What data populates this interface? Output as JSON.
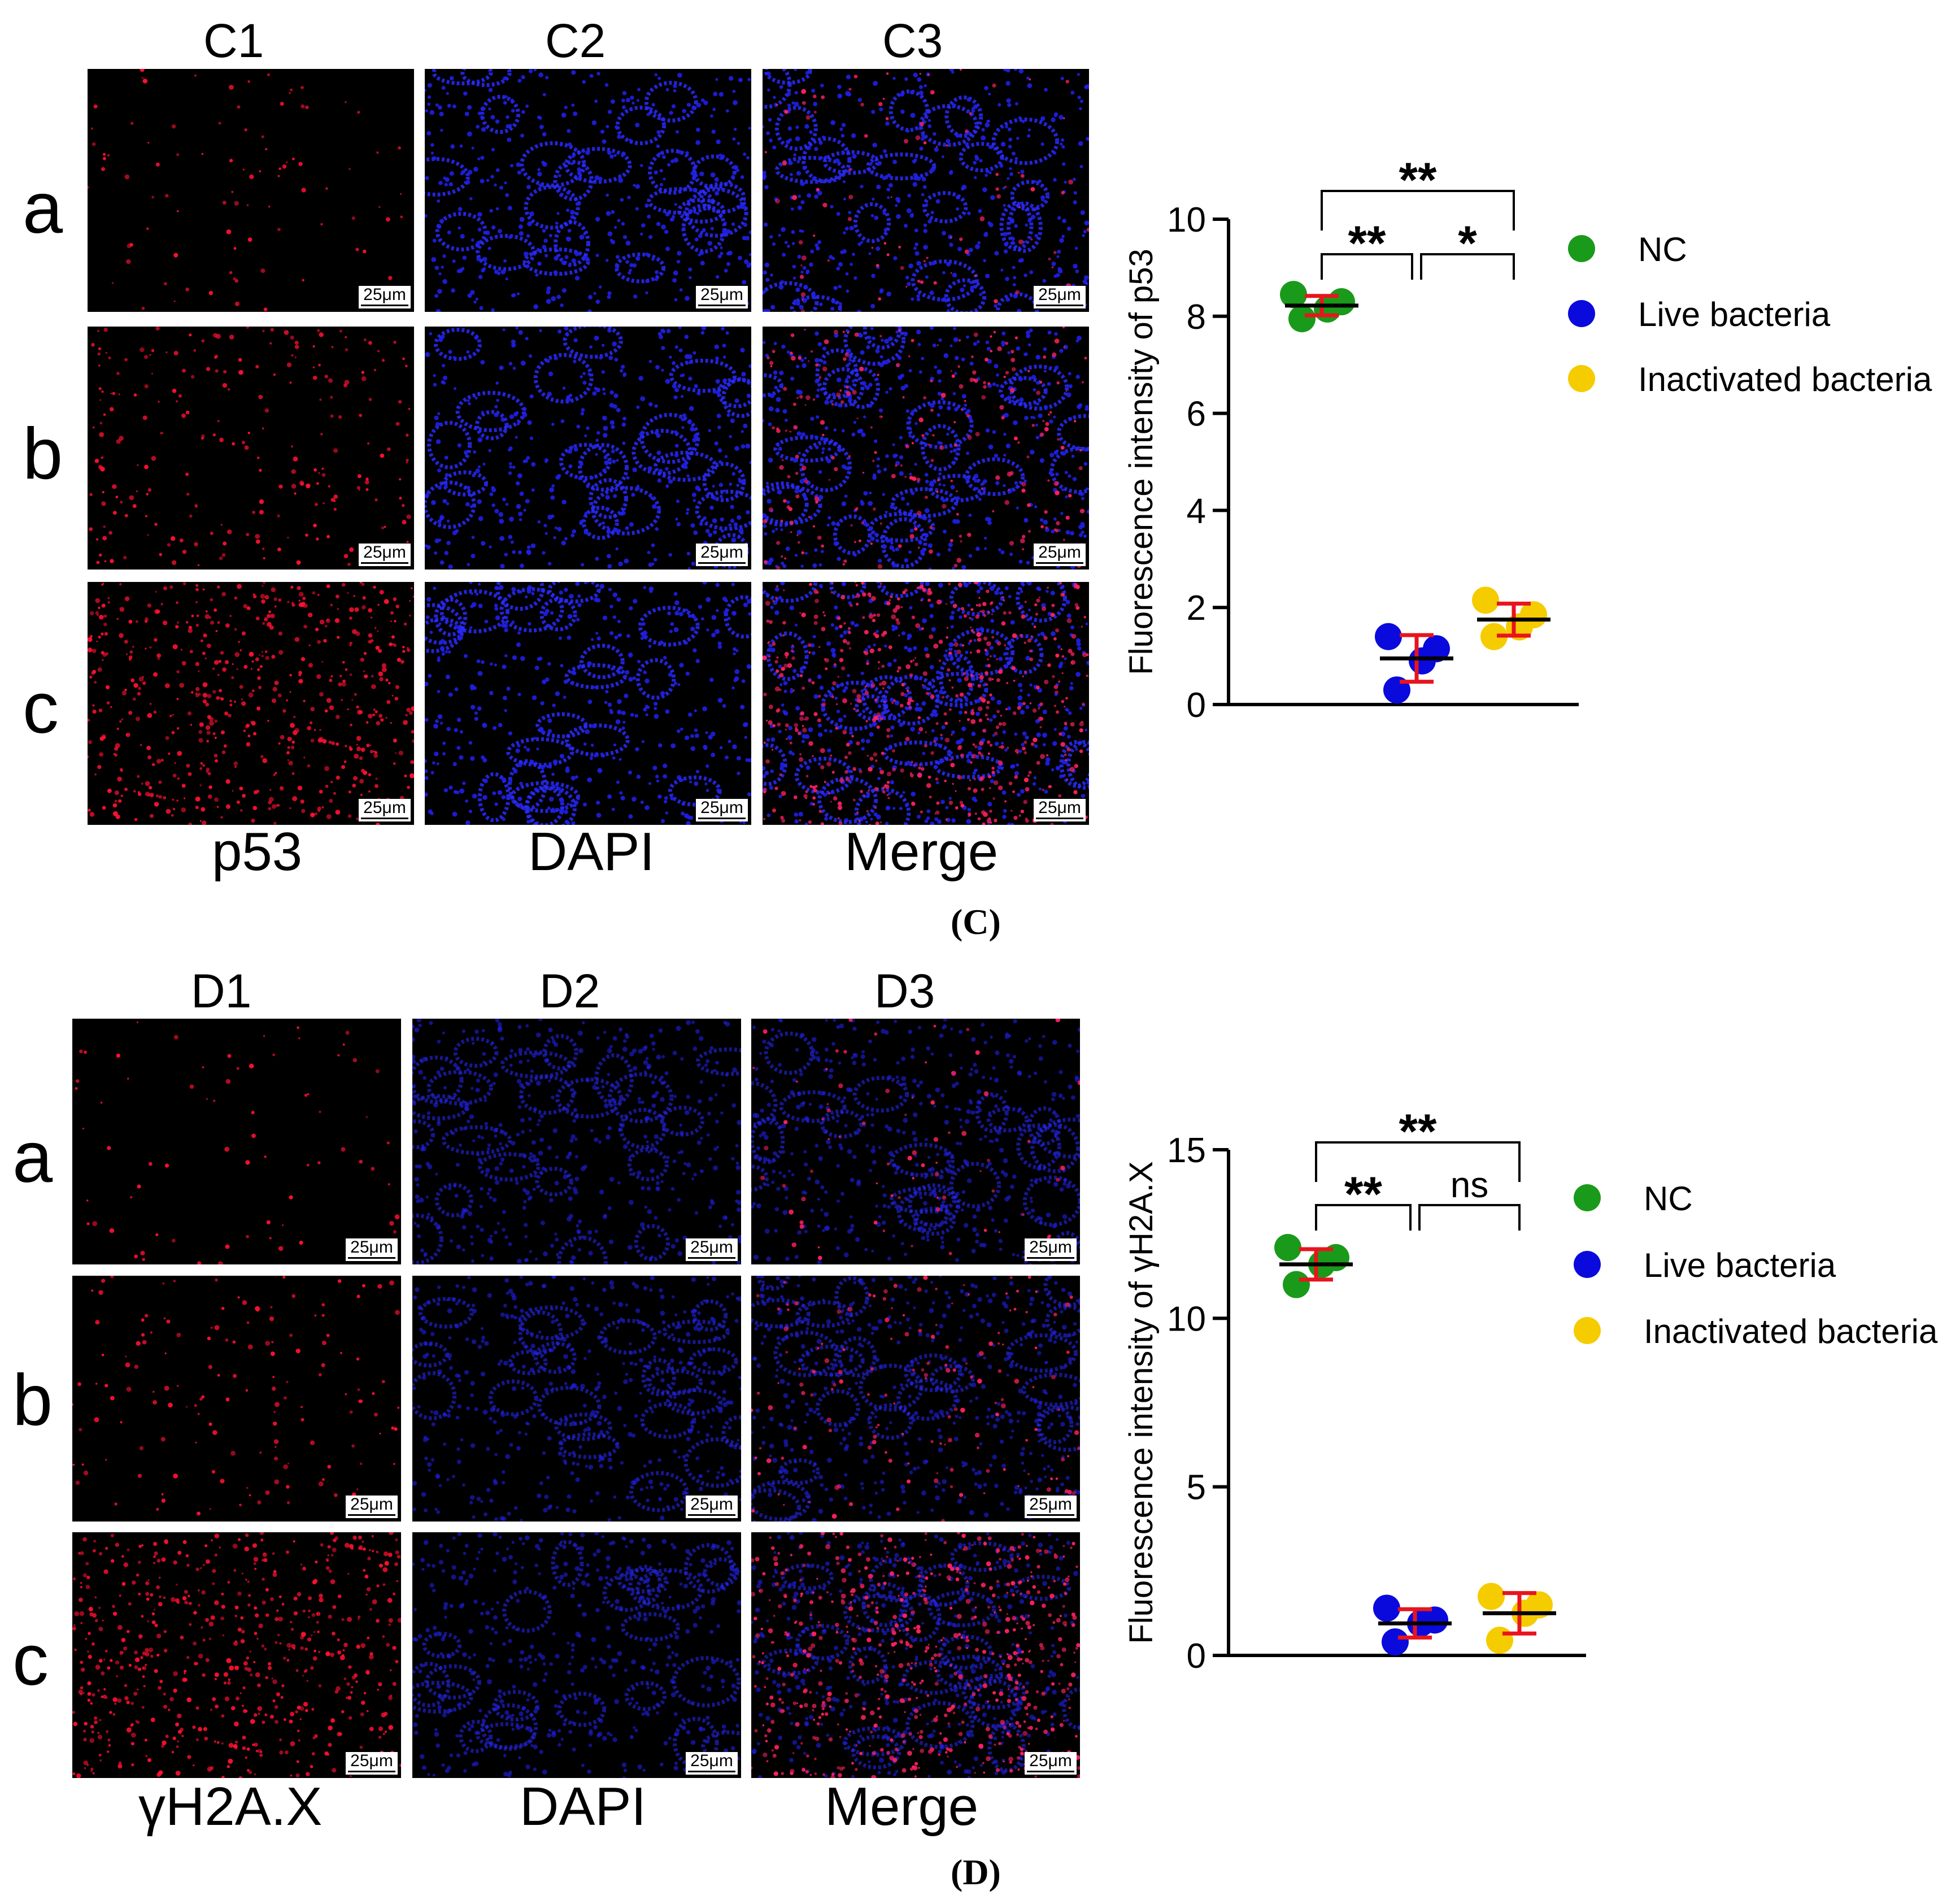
{
  "panel_c": {
    "col_headers": [
      "C1",
      "C2",
      "C3"
    ],
    "row_labels": [
      "a",
      "b",
      "c"
    ],
    "bottom_labels": [
      "p53",
      "DAPI",
      "Merge"
    ],
    "scale_bar": "25μm",
    "panel_label": "(C)"
  },
  "panel_d": {
    "col_headers": [
      "D1",
      "D2",
      "D3"
    ],
    "row_labels": [
      "a",
      "b",
      "c"
    ],
    "bottom_labels": [
      "γH2A.X",
      "DAPI",
      "Merge"
    ],
    "scale_bar": "25μm",
    "panel_label": "(D)"
  },
  "colors": {
    "NC": "#1a9a1a",
    "Live bacteria": "#0a0adc",
    "Inactivated bacteria": "#f5cc00",
    "error_bar": "#e8141e",
    "mean_line": "#000000"
  },
  "chart_data": [
    {
      "type": "scatter",
      "ylabel": "Fluorescence intensity of p53",
      "ylim": [
        0,
        10
      ],
      "yticks": [
        0,
        2,
        4,
        6,
        8,
        10
      ],
      "legend_position": "right",
      "series": [
        {
          "name": "NC",
          "points": [
            8.45,
            8.3,
            8.15,
            7.95
          ],
          "mean": 8.22,
          "sd": 0.2
        },
        {
          "name": "Live bacteria",
          "points": [
            1.4,
            1.15,
            0.9,
            0.3
          ],
          "mean": 0.95,
          "sd": 0.48
        },
        {
          "name": "Inactivated bacteria",
          "points": [
            2.15,
            1.85,
            1.6,
            1.4
          ],
          "mean": 1.75,
          "sd": 0.33
        }
      ],
      "significance": [
        {
          "from": "NC",
          "to": "Live bacteria",
          "label": "**"
        },
        {
          "from": "Live bacteria",
          "to": "Inactivated bacteria",
          "label": "*"
        },
        {
          "from": "NC",
          "to": "Inactivated bacteria",
          "label": "**"
        }
      ]
    },
    {
      "type": "scatter",
      "ylabel": "Fluorescence intensity of γH2A.X",
      "ylim": [
        0,
        15
      ],
      "yticks": [
        0,
        5,
        10,
        15
      ],
      "legend_position": "right",
      "series": [
        {
          "name": "NC",
          "points": [
            12.1,
            11.8,
            11.6,
            11.0
          ],
          "mean": 11.6,
          "sd": 0.45
        },
        {
          "name": "Live bacteria",
          "points": [
            1.4,
            1.05,
            0.95,
            0.4
          ],
          "mean": 0.95,
          "sd": 0.42
        },
        {
          "name": "Inactivated bacteria",
          "points": [
            1.75,
            1.5,
            1.25,
            0.45
          ],
          "mean": 1.25,
          "sd": 0.6
        }
      ],
      "significance": [
        {
          "from": "NC",
          "to": "Live bacteria",
          "label": "**"
        },
        {
          "from": "Live bacteria",
          "to": "Inactivated bacteria",
          "label": "ns"
        },
        {
          "from": "NC",
          "to": "Inactivated bacteria",
          "label": "**"
        }
      ]
    }
  ]
}
